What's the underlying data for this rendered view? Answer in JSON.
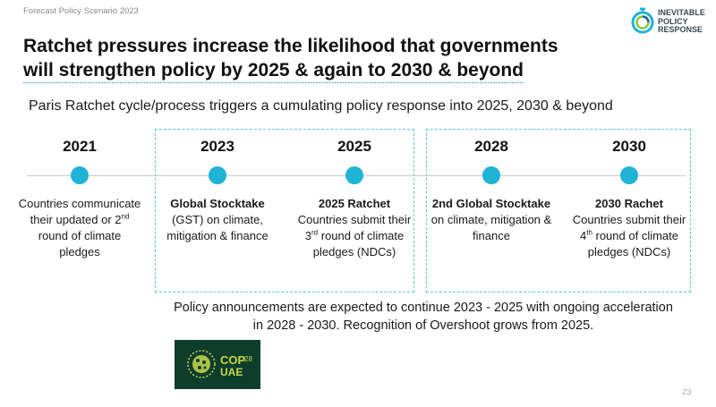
{
  "header": {
    "label": "Forecast Policy Scenario 2023"
  },
  "logo": {
    "lines": [
      "INEVITABLE",
      "POLICY",
      "RESPONSE"
    ]
  },
  "title": {
    "line1": "Ratchet pressures increase the likelihood that governments",
    "line2": "will strengthen policy by 2025 & again to 2030 & beyond"
  },
  "subtitle": "Paris Ratchet cycle/process triggers a cumulating policy response into 2025, 2030 & beyond",
  "timeline": [
    {
      "year": "2021",
      "heading": "",
      "body": "Countries communicate their updated or 2",
      "sup": "nd",
      "body_after": " round of climate pledges"
    },
    {
      "year": "2023",
      "heading": "Global Stocktake",
      "body": "(GST) on climate, mitigation & finance",
      "sup": "",
      "body_after": ""
    },
    {
      "year": "2025",
      "heading": "2025 Ratchet",
      "body": "Countries submit their 3",
      "sup": "rd",
      "body_after": " round of climate pledges (NDCs)"
    },
    {
      "year": "2028",
      "heading": "2nd Global Stocktake",
      "body": "on climate, mitigation & finance",
      "sup": "",
      "body_after": ""
    },
    {
      "year": "2030",
      "heading": "2030 Rachet",
      "body": "Countries submit their 4",
      "sup": "th",
      "body_after": " round of climate pledges (NDCs)"
    }
  ],
  "footer_note": {
    "line1": "Policy announcements are expected to continue 2023 - 2025 with ongoing acceleration",
    "line2": "in 2028 - 2030. Recognition of Overshoot grows from 2025."
  },
  "cop_badge": {
    "text_cop": "COP",
    "text_num": "28",
    "text_uae": "UAE"
  },
  "page_number": "23",
  "colors": {
    "accent": "#1fb3d6",
    "dashed_border": "#5ccbdb",
    "badge_bg": "#0e3d2c",
    "badge_text": "#c8d84a"
  }
}
